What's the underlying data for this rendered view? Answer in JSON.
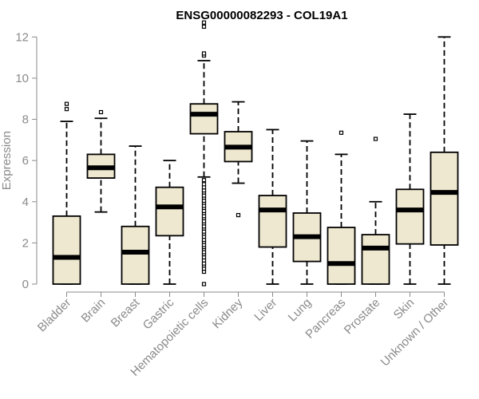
{
  "chart_data": {
    "type": "boxplot",
    "title": "ENSG00000082293 - COL19A1",
    "ylabel": "Expression",
    "xlabel": "",
    "ylim": [
      0,
      12.4
    ],
    "yticks": [
      0,
      2,
      4,
      6,
      8,
      10,
      12
    ],
    "grid": false,
    "colors": {
      "box_fill": "#efe8d0",
      "stroke": "#000000",
      "axis": "#8a8a8a"
    },
    "categories": [
      "Bladder",
      "Brain",
      "Breast",
      "Gastric",
      "Hematopoietic cells",
      "Kidney",
      "Liver",
      "Lung",
      "Pancreas",
      "Prostate",
      "Skin",
      "Unknown / Other"
    ],
    "boxes": [
      {
        "label": "Bladder",
        "min": 0,
        "q1": 0,
        "median": 1.3,
        "q3": 3.3,
        "max": 7.9,
        "outliers": [
          8.5,
          8.75
        ]
      },
      {
        "label": "Brain",
        "min": 3.5,
        "q1": 5.15,
        "median": 5.65,
        "q3": 6.3,
        "max": 8.05,
        "outliers": [
          8.35
        ]
      },
      {
        "label": "Breast",
        "min": 0,
        "q1": 0,
        "median": 1.55,
        "q3": 2.8,
        "max": 6.7,
        "outliers": []
      },
      {
        "label": "Gastric",
        "min": 0,
        "q1": 2.35,
        "median": 3.75,
        "q3": 4.7,
        "max": 6.0,
        "outliers": []
      },
      {
        "label": "Hematopoietic cells",
        "min": 5.2,
        "q1": 7.3,
        "median": 8.25,
        "q3": 8.75,
        "max": 10.85,
        "outliers": [
          11.1,
          11.2,
          12.5,
          12.7,
          0.0,
          0.6,
          0.75,
          0.9,
          1.0,
          1.15,
          1.3,
          1.45,
          1.55,
          1.7,
          1.8,
          1.9,
          2.05,
          2.15,
          2.3,
          2.45,
          2.55,
          2.7,
          2.8,
          2.95,
          3.05,
          3.2,
          3.3,
          3.45,
          3.55,
          3.7,
          3.8,
          3.95,
          4.05,
          4.2,
          4.3,
          4.45,
          4.55,
          4.7,
          4.85,
          5.05
        ]
      },
      {
        "label": "Kidney",
        "min": 4.9,
        "q1": 5.95,
        "median": 6.65,
        "q3": 7.4,
        "max": 8.85,
        "outliers": [
          3.35
        ]
      },
      {
        "label": "Liver",
        "min": 0,
        "q1": 1.8,
        "median": 3.6,
        "q3": 4.3,
        "max": 7.5,
        "outliers": []
      },
      {
        "label": "Lung",
        "min": 0,
        "q1": 1.1,
        "median": 2.3,
        "q3": 3.45,
        "max": 6.95,
        "outliers": []
      },
      {
        "label": "Pancreas",
        "min": 0,
        "q1": 0,
        "median": 1.0,
        "q3": 2.75,
        "max": 6.3,
        "outliers": [
          7.35
        ]
      },
      {
        "label": "Prostate",
        "min": 0,
        "q1": 0,
        "median": 1.75,
        "q3": 2.4,
        "max": 4.0,
        "outliers": [
          7.05
        ]
      },
      {
        "label": "Skin",
        "min": 0,
        "q1": 1.95,
        "median": 3.6,
        "q3": 4.6,
        "max": 8.25,
        "outliers": []
      },
      {
        "label": "Unknown / Other",
        "min": 0,
        "q1": 1.9,
        "median": 4.45,
        "q3": 6.4,
        "max": 12.0,
        "outliers": []
      }
    ]
  }
}
